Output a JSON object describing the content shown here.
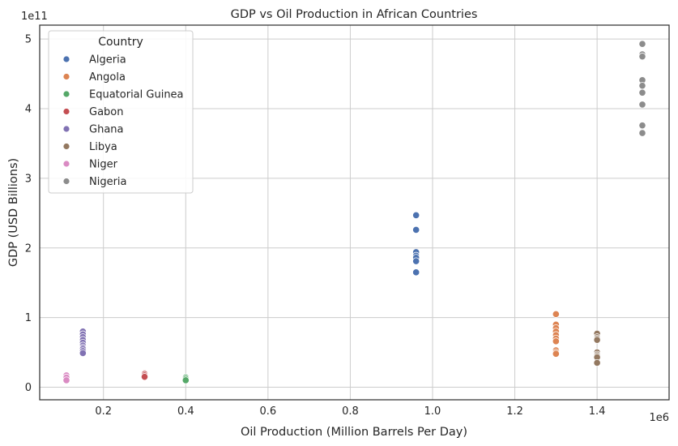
{
  "chart_data": {
    "type": "scatter",
    "title": "GDP vs Oil Production in African Countries",
    "xlabel": "Oil Production (Million Barrels Per Day)",
    "ylabel": "GDP (USD Billions)",
    "x_offset_label": "1e6",
    "y_offset_label": "1e11",
    "xlim": [
      0.045,
      1.575
    ],
    "ylim": [
      -0.18,
      5.2
    ],
    "x_ticks": [
      0.2,
      0.4,
      0.6,
      0.8,
      1.0,
      1.2,
      1.4
    ],
    "x_tick_labels": [
      "0.2",
      "0.4",
      "0.6",
      "0.8",
      "1.0",
      "1.2",
      "1.4"
    ],
    "y_ticks": [
      0,
      1,
      2,
      3,
      4,
      5
    ],
    "y_tick_labels": [
      "0",
      "1",
      "2",
      "3",
      "4",
      "5"
    ],
    "grid": true,
    "legend": {
      "title": "Country",
      "placement": "top-left"
    },
    "series": [
      {
        "name": "Algeria",
        "color": "#4c72b0",
        "x": [
          0.96,
          0.96,
          0.96,
          0.96,
          0.96,
          0.96,
          0.96
        ],
        "y": [
          2.47,
          2.26,
          1.94,
          1.89,
          1.86,
          1.81,
          1.65
        ]
      },
      {
        "name": "Angola",
        "color": "#dd8452",
        "x": [
          1.3,
          1.3,
          1.3,
          1.3,
          1.3,
          1.3,
          1.3,
          1.3,
          1.3,
          1.3
        ],
        "y": [
          1.05,
          0.9,
          0.85,
          0.8,
          0.75,
          0.7,
          0.66,
          0.53,
          0.5,
          0.48
        ]
      },
      {
        "name": "Equatorial Guinea",
        "color": "#55a868",
        "x": [
          0.4,
          0.4,
          0.4
        ],
        "y": [
          0.14,
          0.12,
          0.1
        ]
      },
      {
        "name": "Gabon",
        "color": "#c44e52",
        "x": [
          0.3,
          0.3,
          0.3,
          0.3
        ],
        "y": [
          0.2,
          0.19,
          0.17,
          0.15
        ]
      },
      {
        "name": "Ghana",
        "color": "#8172b3",
        "x": [
          0.15,
          0.15,
          0.15,
          0.15,
          0.15,
          0.15,
          0.15,
          0.15,
          0.15,
          0.15
        ],
        "y": [
          0.8,
          0.76,
          0.72,
          0.68,
          0.64,
          0.6,
          0.57,
          0.55,
          0.52,
          0.49
        ]
      },
      {
        "name": "Libya",
        "color": "#937860",
        "x": [
          1.4,
          1.4,
          1.4,
          1.4,
          1.4,
          1.4,
          1.4,
          1.4,
          1.4
        ],
        "y": [
          0.77,
          0.72,
          0.7,
          0.68,
          0.5,
          0.47,
          0.45,
          0.43,
          0.35
        ]
      },
      {
        "name": "Niger",
        "color": "#da8bc3",
        "x": [
          0.11,
          0.11,
          0.11
        ],
        "y": [
          0.17,
          0.14,
          0.1
        ]
      },
      {
        "name": "Nigeria",
        "color": "#8c8c8c",
        "x": [
          1.51,
          1.51,
          1.51,
          1.51,
          1.51,
          1.51,
          1.51,
          1.51,
          1.51
        ],
        "y": [
          4.93,
          4.78,
          4.75,
          4.41,
          4.33,
          4.23,
          4.06,
          3.76,
          3.65
        ]
      }
    ]
  }
}
